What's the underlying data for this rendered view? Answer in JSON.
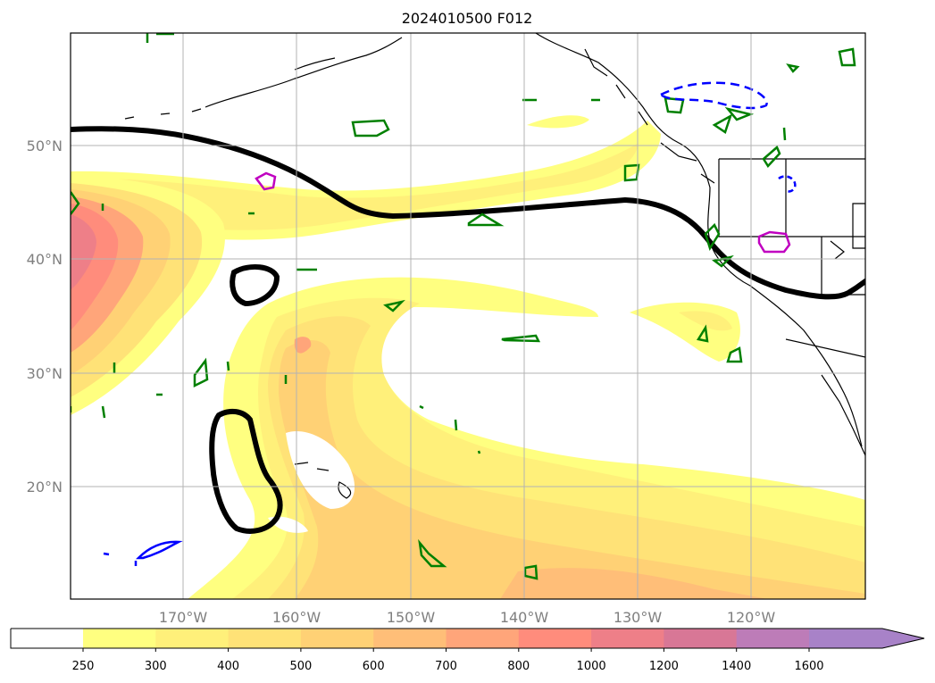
{
  "title": "2024010500 F012",
  "map": {
    "lon_labels": [
      "170°W",
      "160°W",
      "150°W",
      "140°W",
      "130°W",
      "120°W"
    ],
    "lat_labels": [
      "50°N",
      "40°N",
      "30°N",
      "20°N"
    ],
    "extent": {
      "lon_min": -180,
      "lon_max": -110,
      "lat_min": 10,
      "lat_max": 60
    },
    "gridlines": true
  },
  "colorbar": {
    "ticks": [
      "250",
      "300",
      "400",
      "500",
      "600",
      "700",
      "800",
      "1000",
      "1200",
      "1400",
      "1600"
    ],
    "colors": [
      "#ffff80",
      "#fff07a",
      "#ffe277",
      "#ffd175",
      "#ffbe78",
      "#ffa57a",
      "#ff8c7c",
      "#ee7f88",
      "#d87796",
      "#bd7cb8",
      "#a882c8"
    ],
    "extend": "max"
  }
}
